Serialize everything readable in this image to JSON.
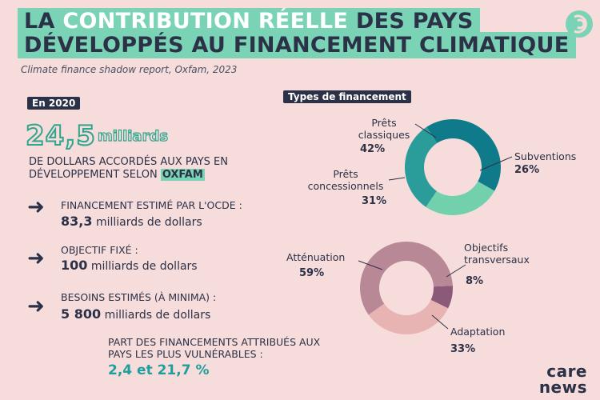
{
  "header": {
    "title_line1_part1": "La ",
    "title_line1_highlight": "contribution réelle",
    "title_line1_part2": " des pays",
    "title_line2": "développés au financement climatique",
    "subtitle": "Climate finance shadow report, Oxfam, 2023"
  },
  "left": {
    "year_tag": "En 2020",
    "big_number": "24,5",
    "big_unit": "milliards",
    "description_part1": "de dollars accordés aux pays en développement selon",
    "description_brand": "Oxfam",
    "items": [
      {
        "label": "Financement estimé par l'OCDE :",
        "value": "83,3",
        "unit": "milliards de dollars"
      },
      {
        "label": "Objectif fixé :",
        "value": "100",
        "unit": "milliards de dollars"
      },
      {
        "label": "Besoins estimés (à minima) :",
        "value": "5 800",
        "unit": "milliards de dollars"
      }
    ],
    "vulnerable_label": "Part des financements attribués aux pays les plus vulnérables :",
    "vulnerable_value": "2,4 et 21,7 %"
  },
  "right": {
    "types_tag": "Types de financement"
  },
  "chart_data": [
    {
      "type": "pie",
      "donut": true,
      "title": "Types de financement",
      "slices": [
        {
          "label": "Prêts classiques",
          "value": 42,
          "display": "42%",
          "color": "#0f7a8a"
        },
        {
          "label": "Subventions",
          "value": 26,
          "display": "26%",
          "color": "#72d0ad"
        },
        {
          "label": "Prêts concessionnels",
          "value": 31,
          "display": "31%",
          "color": "#2a9d9a"
        }
      ]
    },
    {
      "type": "pie",
      "donut": true,
      "title": "",
      "slices": [
        {
          "label": "Objectifs transversaux",
          "value": 8,
          "display": "8%",
          "color": "#8a5a78"
        },
        {
          "label": "Adaptation",
          "value": 33,
          "display": "33%",
          "color": "#e8b3b3"
        },
        {
          "label": "Atténuation",
          "value": 59,
          "display": "59%",
          "color": "#b98896"
        }
      ]
    }
  ],
  "logo": {
    "line1": "care",
    "line2": "news"
  },
  "colors": {
    "background": "#f7dcdc",
    "accent": "#7ad3b4",
    "dark": "#2b3147",
    "teal": "#1f9e9e"
  }
}
